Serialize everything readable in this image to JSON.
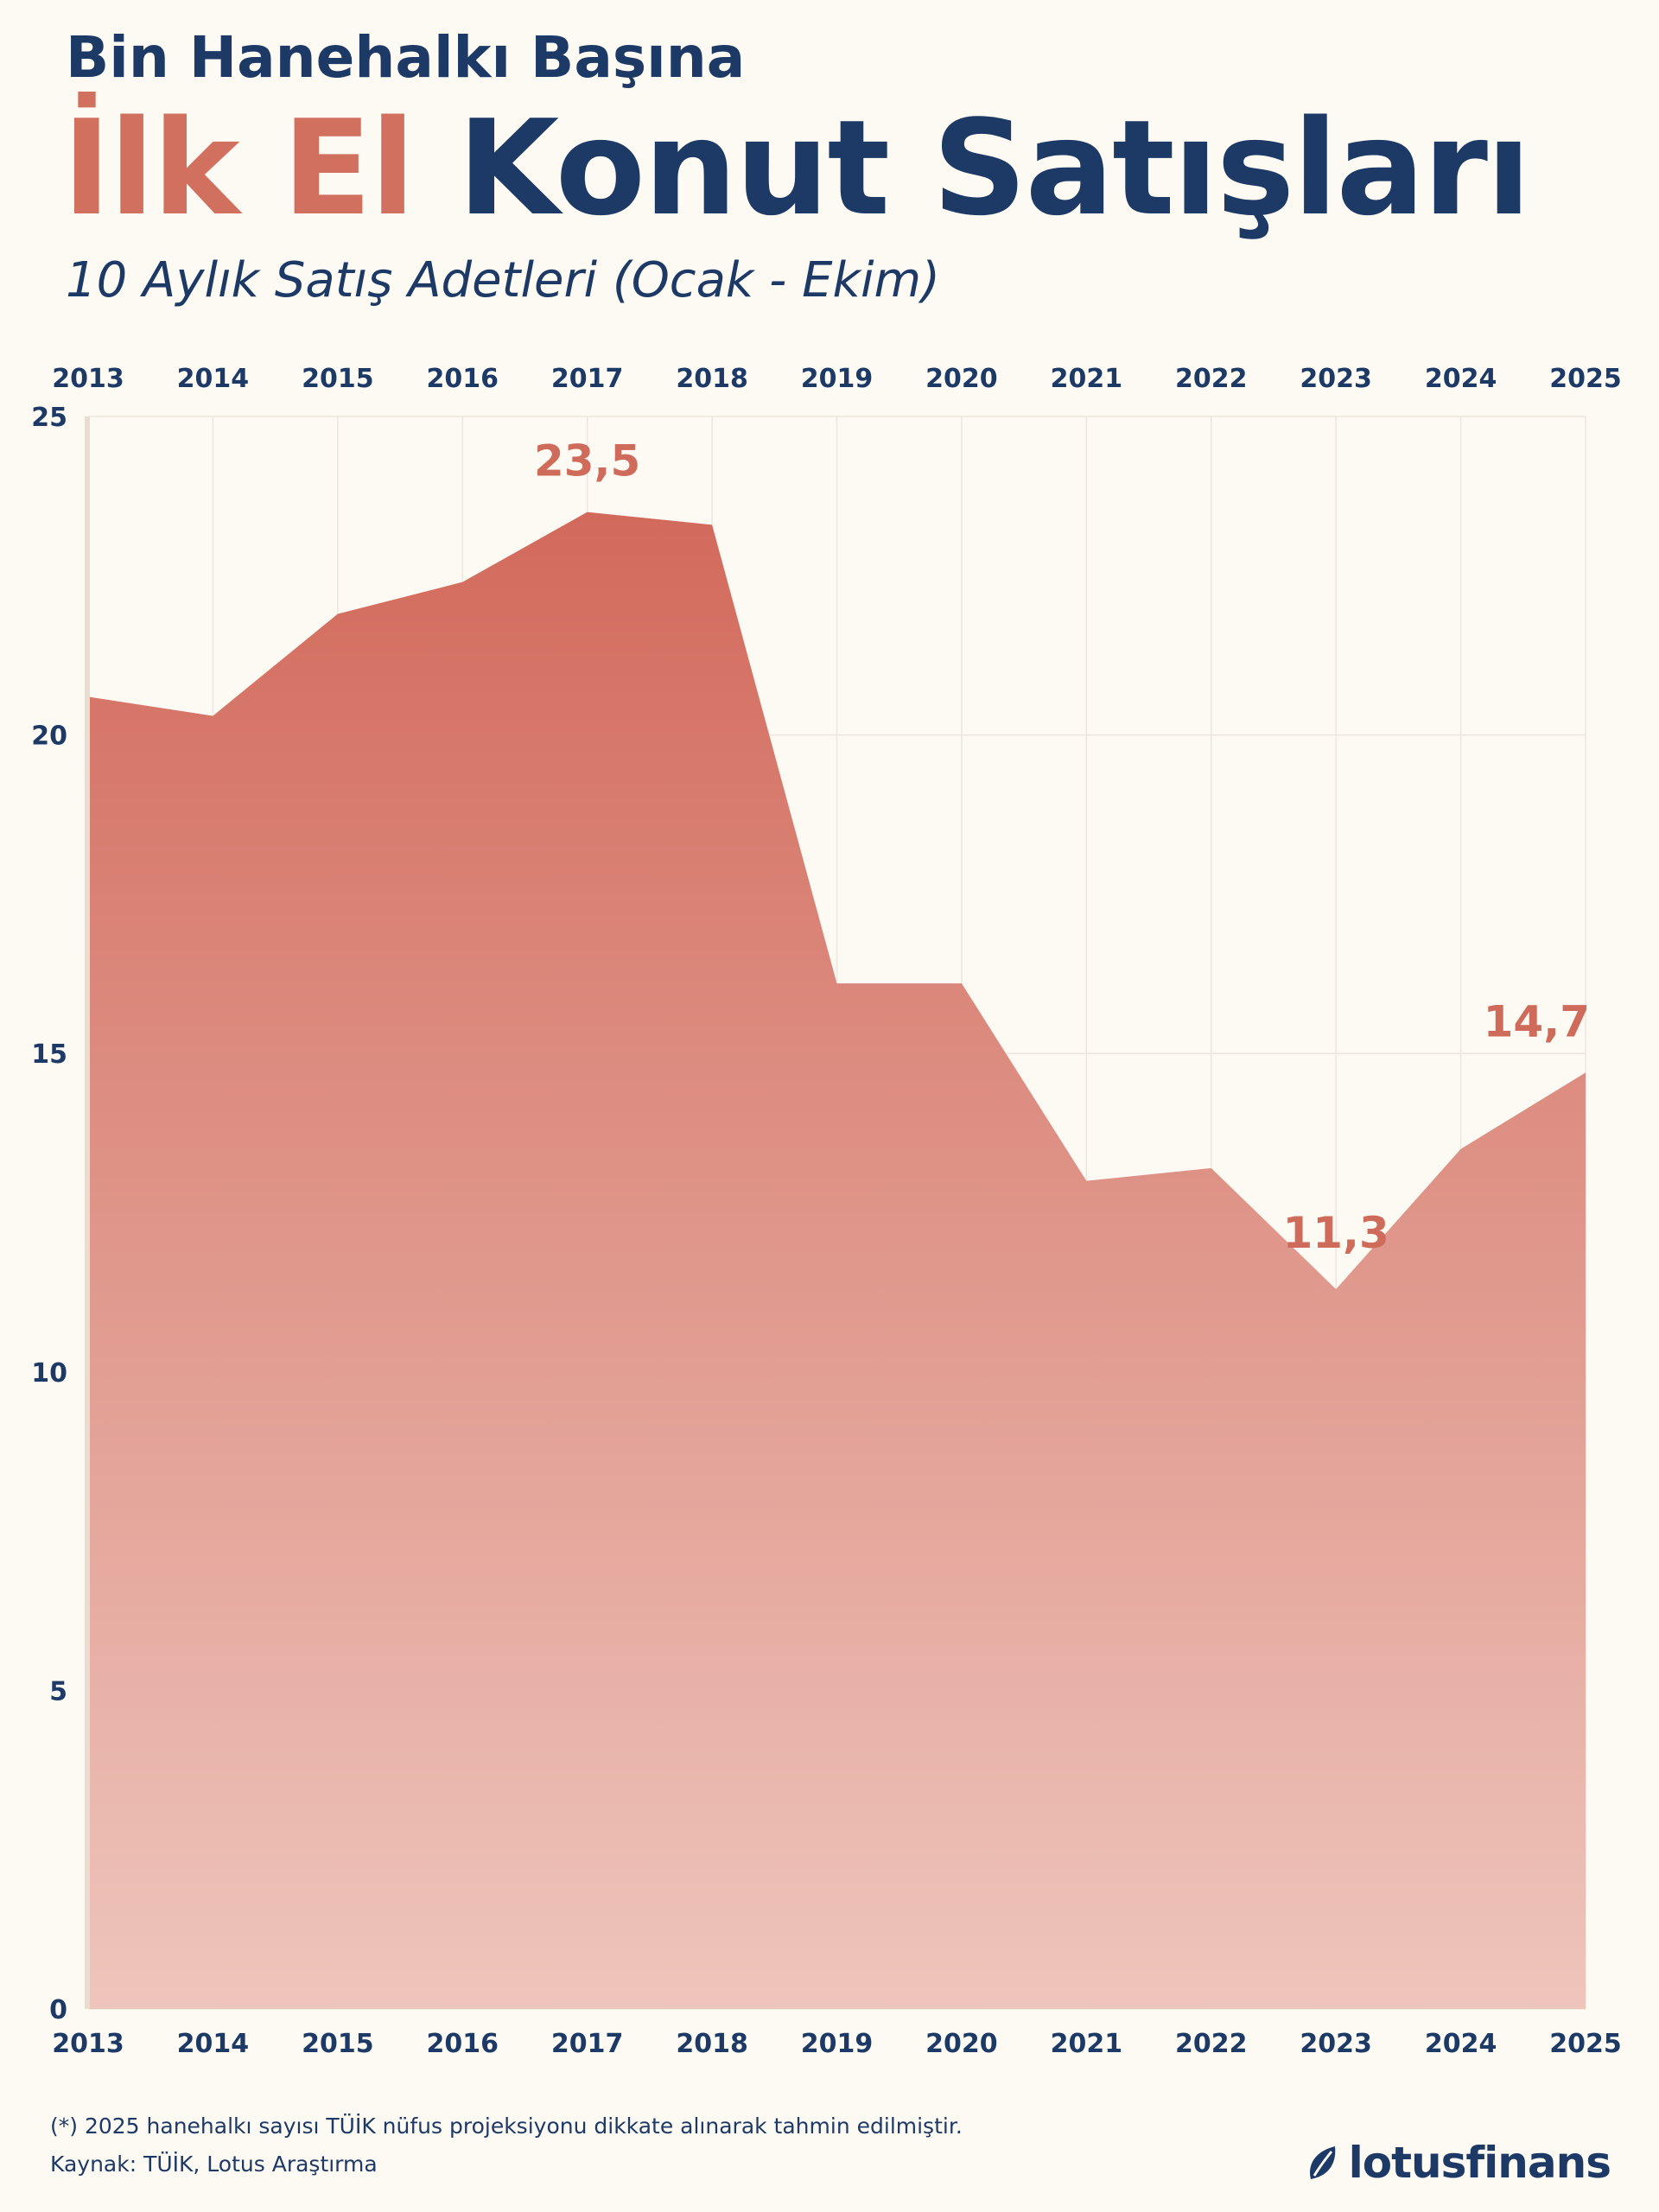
{
  "header": {
    "kicker": "Bin Hanehalkı Başına",
    "title_accent": "İlk El",
    "title_main": "Konut Satışları",
    "subtitle": "10 Aylık Satış Adetleri (Ocak - Ekim)"
  },
  "colors": {
    "accent": "#d2705f",
    "navy": "#1d3a67",
    "background": "#fdfaf3",
    "area_top": "#d26a5c",
    "area_bottom": "#eec5bc"
  },
  "chart_data": {
    "type": "area",
    "x": [
      "2013",
      "2014",
      "2015",
      "2016",
      "2017",
      "2018",
      "2019",
      "2020",
      "2021",
      "2022",
      "2023",
      "2024",
      "2025"
    ],
    "values": [
      20.6,
      20.3,
      21.9,
      22.4,
      23.5,
      23.3,
      16.1,
      16.1,
      13.0,
      13.2,
      11.3,
      13.5,
      14.7
    ],
    "ylim": [
      0,
      25
    ],
    "yticks": [
      "0",
      "5",
      "10",
      "15",
      "20",
      "25"
    ],
    "grid": true,
    "annotations": [
      {
        "x": "2017",
        "label": "23,5"
      },
      {
        "x": "2023",
        "label": "11,3"
      },
      {
        "x": "2025",
        "label": "14,7"
      }
    ]
  },
  "footer": {
    "note": "(*) 2025 hanehalkı sayısı TÜİK nüfus projeksiyonu dikkate alınarak tahmin edilmiştir.",
    "source": "Kaynak: TÜİK, Lotus Araştırma",
    "brand": "lotusfinans",
    "brand_icon": "lotus-leaf-icon"
  }
}
